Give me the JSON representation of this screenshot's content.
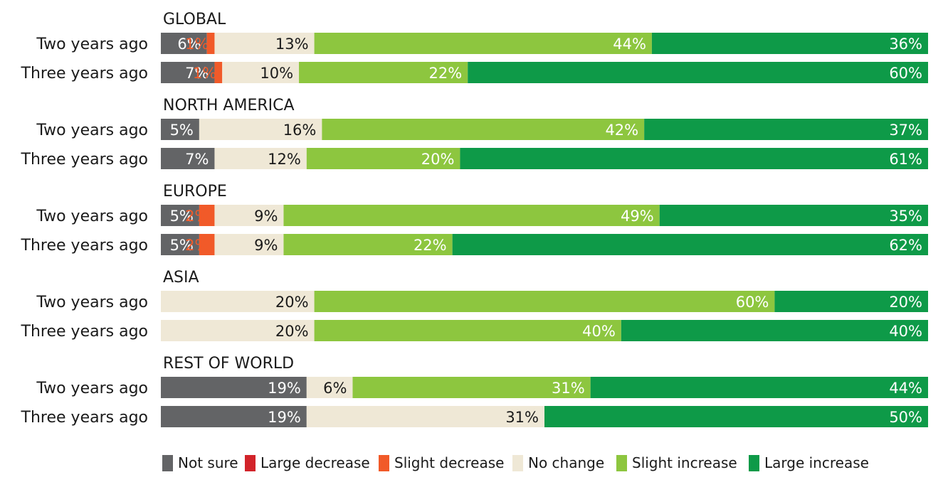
{
  "chart_data": {
    "type": "bar",
    "orientation": "horizontal",
    "stacked": true,
    "value_unit": "%",
    "series": [
      {
        "name": "Not sure",
        "color": "#636466",
        "label_color": "#ffffff"
      },
      {
        "name": "Large decrease",
        "color": "#d2232a",
        "label_color": "#d2232a"
      },
      {
        "name": "Slight decrease",
        "color": "#f15a29",
        "label_color": "#f15a29"
      },
      {
        "name": "No change",
        "color": "#efe8d6",
        "label_color": "#1a1a1a"
      },
      {
        "name": "Slight increase",
        "color": "#8dc63f",
        "label_color": "#ffffff"
      },
      {
        "name": "Large increase",
        "color": "#0e9a48",
        "label_color": "#ffffff"
      }
    ],
    "groups": [
      {
        "title": "GLOBAL",
        "rows": [
          {
            "label": "Two years ago",
            "values": [
              6,
              0,
              1,
              13,
              44,
              36
            ]
          },
          {
            "label": "Three years ago",
            "values": [
              7,
              0,
              1,
              10,
              22,
              60
            ]
          }
        ]
      },
      {
        "title": "NORTH AMERICA",
        "rows": [
          {
            "label": "Two years ago",
            "values": [
              5,
              0,
              0,
              16,
              42,
              37
            ]
          },
          {
            "label": "Three years ago",
            "values": [
              7,
              0,
              0,
              12,
              20,
              61
            ]
          }
        ]
      },
      {
        "title": "EUROPE",
        "rows": [
          {
            "label": "Two years ago",
            "values": [
              5,
              0,
              2,
              9,
              49,
              35
            ]
          },
          {
            "label": "Three years ago",
            "values": [
              5,
              0,
              2,
              9,
              22,
              62
            ]
          }
        ]
      },
      {
        "title": "ASIA",
        "rows": [
          {
            "label": "Two years ago",
            "values": [
              0,
              0,
              0,
              20,
              60,
              20
            ]
          },
          {
            "label": "Three years ago",
            "values": [
              0,
              0,
              0,
              20,
              40,
              40
            ]
          }
        ]
      },
      {
        "title": "REST OF WORLD",
        "rows": [
          {
            "label": "Two years ago",
            "values": [
              19,
              0,
              0,
              6,
              31,
              44
            ]
          },
          {
            "label": "Three years ago",
            "values": [
              19,
              0,
              0,
              31,
              0,
              50
            ]
          }
        ]
      }
    ],
    "legend_position": "bottom",
    "grid": false
  }
}
